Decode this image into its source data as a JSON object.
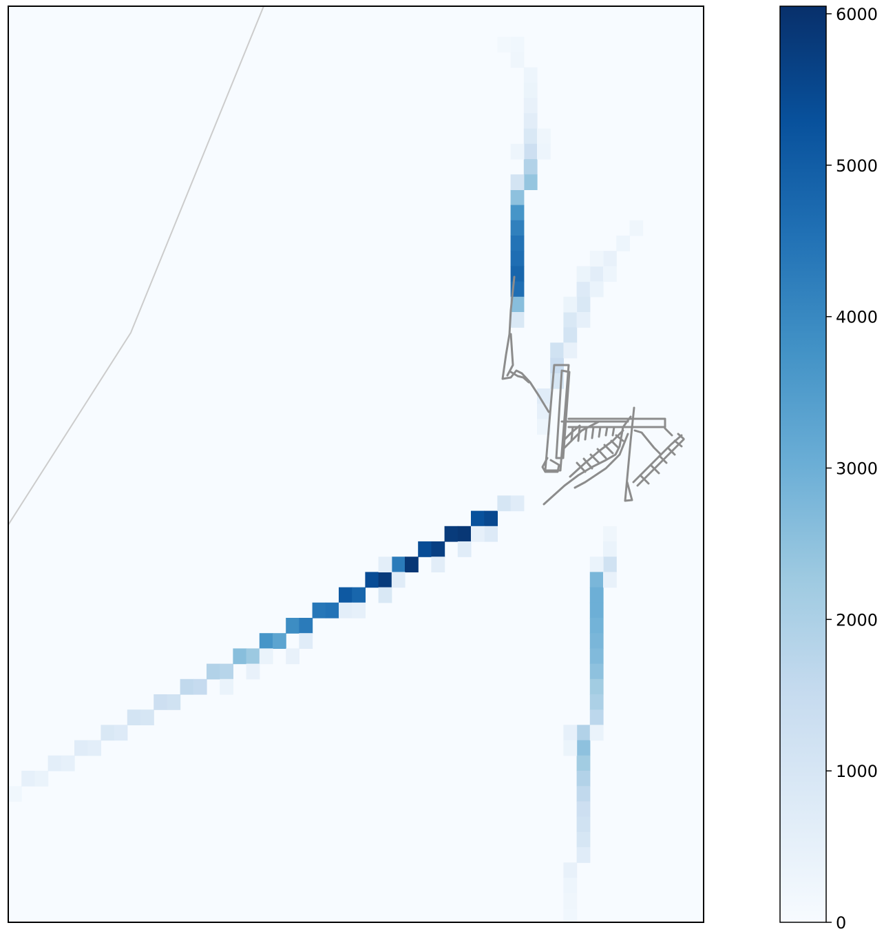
{
  "chart_data": {
    "type": "heatmap",
    "title": "",
    "xlabel": "",
    "ylabel": "",
    "colormap": "Blues",
    "colorbar": {
      "range": [
        0,
        6050
      ],
      "ticks": [
        0,
        1000,
        2000,
        3000,
        4000,
        5000,
        6000
      ],
      "tick_labels": [
        "0",
        "1000",
        "2000",
        "3000",
        "4000",
        "5000",
        "6000"
      ],
      "placement": "right"
    },
    "axes": {
      "x_ticks": "none",
      "y_ticks": "none",
      "grid": false
    },
    "background_value": 0,
    "tracks": [
      {
        "name": "southwest-approach",
        "cells": [
          {
            "i": 0,
            "j": 51,
            "v": 200
          },
          {
            "i": 1,
            "j": 50,
            "v": 500
          },
          {
            "i": 2,
            "j": 50,
            "v": 400
          },
          {
            "i": 3,
            "j": 49,
            "v": 600
          },
          {
            "i": 4,
            "j": 49,
            "v": 500
          },
          {
            "i": 5,
            "j": 48,
            "v": 700
          },
          {
            "i": 6,
            "j": 48,
            "v": 600
          },
          {
            "i": 7,
            "j": 47,
            "v": 900
          },
          {
            "i": 8,
            "j": 47,
            "v": 800
          },
          {
            "i": 9,
            "j": 46,
            "v": 1100
          },
          {
            "i": 10,
            "j": 46,
            "v": 1000
          },
          {
            "i": 11,
            "j": 45,
            "v": 1300
          },
          {
            "i": 12,
            "j": 45,
            "v": 1200
          },
          {
            "i": 13,
            "j": 44,
            "v": 1600
          },
          {
            "i": 14,
            "j": 44,
            "v": 1500
          },
          {
            "i": 15,
            "j": 43,
            "v": 1900
          },
          {
            "i": 16,
            "j": 43,
            "v": 1800
          },
          {
            "i": 17,
            "j": 42,
            "v": 2600
          },
          {
            "i": 18,
            "j": 42,
            "v": 2300
          },
          {
            "i": 19,
            "j": 41,
            "v": 3700
          },
          {
            "i": 20,
            "j": 41,
            "v": 3300
          },
          {
            "i": 21,
            "j": 40,
            "v": 3900
          },
          {
            "i": 22,
            "j": 40,
            "v": 4300
          },
          {
            "i": 23,
            "j": 39,
            "v": 4400
          },
          {
            "i": 24,
            "j": 39,
            "v": 4500
          },
          {
            "i": 25,
            "j": 38,
            "v": 5100
          },
          {
            "i": 26,
            "j": 38,
            "v": 4800
          },
          {
            "i": 27,
            "j": 37,
            "v": 5400
          },
          {
            "i": 28,
            "j": 37,
            "v": 5800
          },
          {
            "i": 29,
            "j": 36,
            "v": 4300
          },
          {
            "i": 30,
            "j": 36,
            "v": 5900
          },
          {
            "i": 31,
            "j": 35,
            "v": 5400
          },
          {
            "i": 32,
            "j": 35,
            "v": 5700
          },
          {
            "i": 33,
            "j": 34,
            "v": 5800
          },
          {
            "i": 34,
            "j": 34,
            "v": 5900
          },
          {
            "i": 35,
            "j": 33,
            "v": 5300
          },
          {
            "i": 36,
            "j": 33,
            "v": 5500
          },
          {
            "i": 37,
            "j": 32,
            "v": 1000
          },
          {
            "i": 38,
            "j": 32,
            "v": 700
          },
          {
            "i": 16,
            "j": 44,
            "v": 400
          },
          {
            "i": 18,
            "j": 43,
            "v": 450
          },
          {
            "i": 22,
            "j": 41,
            "v": 700
          },
          {
            "i": 25,
            "j": 39,
            "v": 600
          },
          {
            "i": 28,
            "j": 38,
            "v": 900
          },
          {
            "i": 29,
            "j": 37,
            "v": 700
          },
          {
            "i": 34,
            "j": 35,
            "v": 700
          },
          {
            "i": 36,
            "j": 34,
            "v": 800
          },
          {
            "i": 32,
            "j": 36,
            "v": 650
          },
          {
            "i": 26,
            "j": 39,
            "v": 500
          },
          {
            "i": 21,
            "j": 42,
            "v": 450
          },
          {
            "i": 19,
            "j": 42,
            "v": 400
          },
          {
            "i": 28,
            "j": 36,
            "v": 600
          },
          {
            "i": 35,
            "j": 34,
            "v": 500
          }
        ]
      },
      {
        "name": "north-approach",
        "cells": [
          {
            "i": 37,
            "j": 2,
            "v": 150
          },
          {
            "i": 38,
            "j": 2,
            "v": 200
          },
          {
            "i": 38,
            "j": 3,
            "v": 250
          },
          {
            "i": 39,
            "j": 4,
            "v": 300
          },
          {
            "i": 39,
            "j": 5,
            "v": 350
          },
          {
            "i": 39,
            "j": 6,
            "v": 450
          },
          {
            "i": 39,
            "j": 7,
            "v": 650
          },
          {
            "i": 39,
            "j": 8,
            "v": 900
          },
          {
            "i": 39,
            "j": 9,
            "v": 1300
          },
          {
            "i": 39,
            "j": 10,
            "v": 1900
          },
          {
            "i": 39,
            "j": 11,
            "v": 2400
          },
          {
            "i": 38,
            "j": 12,
            "v": 2500
          },
          {
            "i": 38,
            "j": 13,
            "v": 3700
          },
          {
            "i": 38,
            "j": 14,
            "v": 4200
          },
          {
            "i": 38,
            "j": 15,
            "v": 4500
          },
          {
            "i": 38,
            "j": 16,
            "v": 4600
          },
          {
            "i": 38,
            "j": 17,
            "v": 4800
          },
          {
            "i": 38,
            "j": 18,
            "v": 4600
          },
          {
            "i": 38,
            "j": 19,
            "v": 2600
          },
          {
            "i": 38,
            "j": 20,
            "v": 900
          },
          {
            "i": 38,
            "j": 11,
            "v": 1100
          },
          {
            "i": 38,
            "j": 9,
            "v": 300
          },
          {
            "i": 40,
            "j": 8,
            "v": 250
          },
          {
            "i": 40,
            "j": 9,
            "v": 300
          }
        ]
      },
      {
        "name": "northeast-approach",
        "cells": [
          {
            "i": 47,
            "j": 14,
            "v": 250
          },
          {
            "i": 46,
            "j": 15,
            "v": 300
          },
          {
            "i": 45,
            "j": 16,
            "v": 450
          },
          {
            "i": 44,
            "j": 17,
            "v": 650
          },
          {
            "i": 43,
            "j": 18,
            "v": 800
          },
          {
            "i": 43,
            "j": 19,
            "v": 900
          },
          {
            "i": 42,
            "j": 20,
            "v": 900
          },
          {
            "i": 42,
            "j": 21,
            "v": 1100
          },
          {
            "i": 41,
            "j": 22,
            "v": 1200
          },
          {
            "i": 41,
            "j": 23,
            "v": 1400
          },
          {
            "i": 41,
            "j": 24,
            "v": 1000
          },
          {
            "i": 40,
            "j": 25,
            "v": 700
          },
          {
            "i": 40,
            "j": 26,
            "v": 500
          },
          {
            "i": 40,
            "j": 27,
            "v": 300
          },
          {
            "i": 44,
            "j": 16,
            "v": 250
          },
          {
            "i": 43,
            "j": 17,
            "v": 350
          },
          {
            "i": 42,
            "j": 19,
            "v": 350
          },
          {
            "i": 42,
            "j": 22,
            "v": 450
          },
          {
            "i": 43,
            "j": 20,
            "v": 500
          },
          {
            "i": 44,
            "j": 18,
            "v": 400
          },
          {
            "i": 45,
            "j": 17,
            "v": 300
          }
        ]
      },
      {
        "name": "south-approach",
        "cells": [
          {
            "i": 45,
            "j": 34,
            "v": 250
          },
          {
            "i": 45,
            "j": 35,
            "v": 400
          },
          {
            "i": 45,
            "j": 36,
            "v": 1200
          },
          {
            "i": 44,
            "j": 36,
            "v": 400
          },
          {
            "i": 44,
            "j": 37,
            "v": 2800
          },
          {
            "i": 44,
            "j": 38,
            "v": 3000
          },
          {
            "i": 44,
            "j": 39,
            "v": 3000
          },
          {
            "i": 44,
            "j": 40,
            "v": 2900
          },
          {
            "i": 44,
            "j": 41,
            "v": 2800
          },
          {
            "i": 44,
            "j": 42,
            "v": 2700
          },
          {
            "i": 44,
            "j": 43,
            "v": 2500
          },
          {
            "i": 44,
            "j": 44,
            "v": 2200
          },
          {
            "i": 44,
            "j": 45,
            "v": 2000
          },
          {
            "i": 44,
            "j": 46,
            "v": 1700
          },
          {
            "i": 43,
            "j": 47,
            "v": 1900
          },
          {
            "i": 43,
            "j": 48,
            "v": 2500
          },
          {
            "i": 43,
            "j": 49,
            "v": 2200
          },
          {
            "i": 43,
            "j": 50,
            "v": 1900
          },
          {
            "i": 43,
            "j": 51,
            "v": 1600
          },
          {
            "i": 43,
            "j": 52,
            "v": 1300
          },
          {
            "i": 43,
            "j": 53,
            "v": 1200
          },
          {
            "i": 43,
            "j": 54,
            "v": 1000
          },
          {
            "i": 43,
            "j": 55,
            "v": 700
          },
          {
            "i": 42,
            "j": 56,
            "v": 450
          },
          {
            "i": 42,
            "j": 57,
            "v": 300
          },
          {
            "i": 42,
            "j": 58,
            "v": 250
          },
          {
            "i": 42,
            "j": 59,
            "v": 200
          },
          {
            "i": 42,
            "j": 47,
            "v": 500
          },
          {
            "i": 42,
            "j": 48,
            "v": 350
          },
          {
            "i": 44,
            "j": 47,
            "v": 400
          },
          {
            "i": 45,
            "j": 37,
            "v": 450
          }
        ]
      }
    ]
  },
  "icons": {
    "overlay": "airport-runway-outline",
    "boundary": "coastline-line"
  },
  "colors": {
    "airport_outline": "#8c8c8c",
    "boundary_line": "#cccccc",
    "axes_frame": "#000000",
    "low": "#f7fbff",
    "high": "#08306b"
  }
}
